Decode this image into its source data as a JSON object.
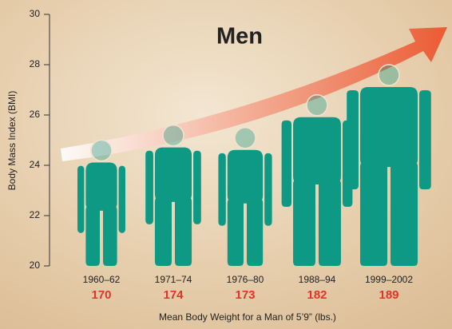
{
  "chart_data": {
    "type": "pictograph",
    "title": "Men",
    "y_label": "Body Mass Index (BMI)",
    "x_label": "Mean Body Weight for a Man of 5’9” (lbs.)",
    "categories": [
      "1960–62",
      "1971–74",
      "1976–80",
      "1988–94",
      "1999–2002"
    ],
    "values": [
      25,
      25.6,
      25.5,
      26.8,
      28
    ],
    "weights": [
      170,
      174,
      173,
      182,
      189
    ],
    "color": "#0e9985",
    "weight_color": "#e0342a",
    "ylim": [
      20,
      30
    ],
    "yticks": [
      20,
      22,
      24,
      26,
      28,
      30
    ]
  }
}
